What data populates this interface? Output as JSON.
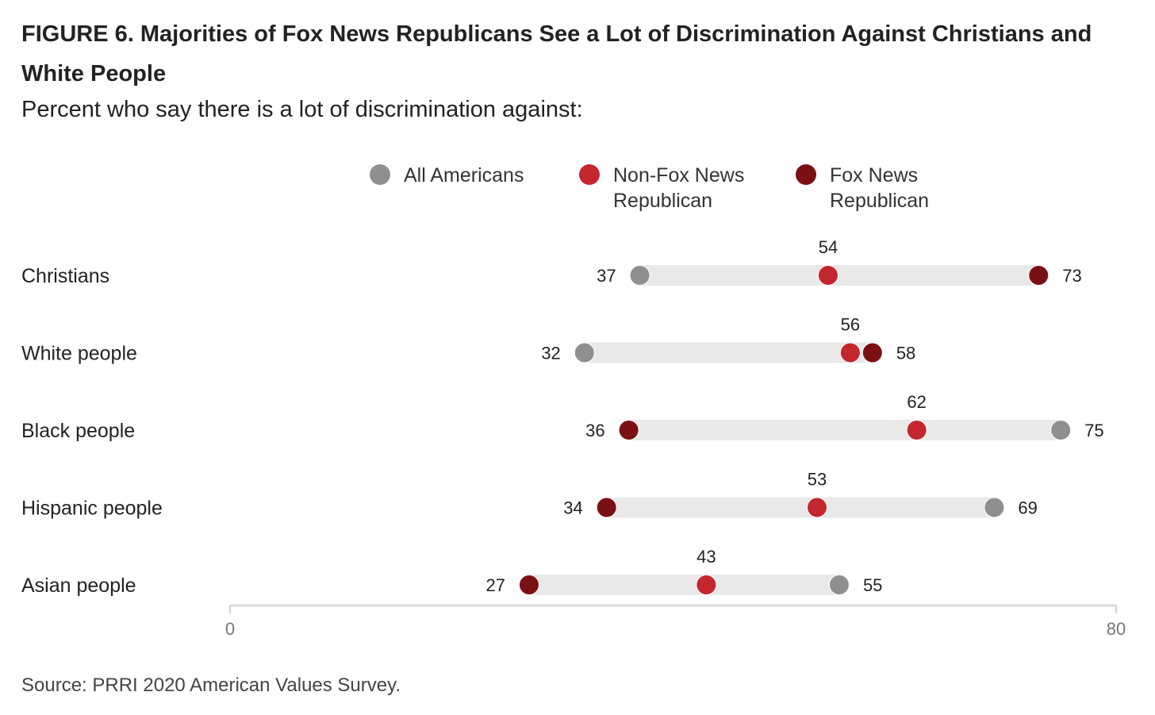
{
  "header": {
    "title": "FIGURE 6. Majorities of Fox News Republicans See a Lot of Discrimination Against Christians and White People",
    "subtitle": "Percent who say there is a lot of discrimination against:"
  },
  "footer": {
    "source": "Source: PRRI 2020 American Values Survey."
  },
  "colors": {
    "all_americans": "#8f8f8f",
    "non_fox_republican": "#c4262e",
    "fox_republican": "#7a1014",
    "range_bar": "#e8e9e8",
    "axis": "#d6d6d6"
  },
  "chart_data": {
    "type": "dot-range",
    "categories": [
      "Christians",
      "White people",
      "Black people",
      "Hispanic people",
      "Asian people"
    ],
    "series": [
      {
        "name": "All Americans",
        "values": [
          37,
          32,
          75,
          69,
          55
        ]
      },
      {
        "name": "Non-Fox News\nRepublican",
        "values": [
          54,
          56,
          62,
          53,
          43
        ]
      },
      {
        "name": "Fox News\nRepublican",
        "values": [
          73,
          58,
          36,
          34,
          27
        ]
      }
    ],
    "xlim": [
      0,
      80
    ],
    "ticks": [
      "0",
      "80"
    ],
    "legend_position": "top"
  }
}
